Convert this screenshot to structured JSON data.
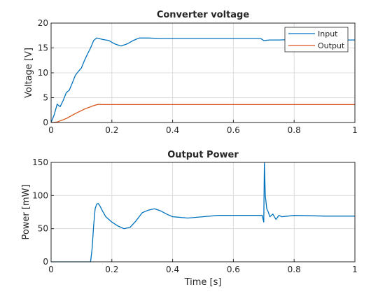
{
  "chart_data": [
    {
      "type": "line",
      "title": "Converter voltage",
      "xlabel": "",
      "ylabel": "Voltage [V]",
      "xlim": [
        0,
        1
      ],
      "ylim": [
        0,
        20
      ],
      "xticks": [
        "0",
        "0.2",
        "0.4",
        "0.6",
        "0.8",
        "1"
      ],
      "xtick_values": [
        0,
        0.2,
        0.4,
        0.6,
        0.8,
        1
      ],
      "yticks": [
        "0",
        "5",
        "10",
        "15",
        "20"
      ],
      "ytick_values": [
        0,
        5,
        10,
        15,
        20
      ],
      "grid": true,
      "legend_position": "top-right",
      "series": [
        {
          "name": "Input",
          "color": "#0072BD",
          "x": [
            0,
            0.01,
            0.02,
            0.025,
            0.03,
            0.04,
            0.05,
            0.06,
            0.07,
            0.08,
            0.09,
            0.1,
            0.11,
            0.12,
            0.13,
            0.14,
            0.15,
            0.17,
            0.19,
            0.21,
            0.23,
            0.25,
            0.27,
            0.29,
            0.32,
            0.36,
            0.4,
            0.5,
            0.6,
            0.69,
            0.7,
            0.72,
            0.75,
            0.8,
            0.9,
            1.0
          ],
          "y": [
            0,
            1.5,
            3.7,
            3.4,
            3.2,
            4.5,
            6.0,
            6.5,
            8.0,
            9.5,
            10.3,
            11.0,
            12.5,
            13.8,
            15.0,
            16.5,
            17.0,
            16.7,
            16.5,
            15.8,
            15.4,
            15.8,
            16.5,
            17.0,
            17.0,
            16.9,
            16.9,
            16.9,
            16.9,
            16.9,
            16.5,
            16.6,
            16.6,
            16.7,
            16.6,
            16.6
          ]
        },
        {
          "name": "Output",
          "color": "#D95319",
          "x": [
            0,
            0.02,
            0.05,
            0.08,
            0.11,
            0.14,
            0.155,
            0.17,
            0.3,
            0.5,
            0.7,
            1.0
          ],
          "y": [
            0,
            0.1,
            0.8,
            1.8,
            2.7,
            3.4,
            3.65,
            3.6,
            3.6,
            3.6,
            3.6,
            3.6
          ]
        }
      ]
    },
    {
      "type": "line",
      "title": "Output Power",
      "xlabel": "Time [s]",
      "ylabel": "Power [mW]",
      "xlim": [
        0,
        1
      ],
      "ylim": [
        0,
        150
      ],
      "xticks": [
        "0",
        "0.2",
        "0.4",
        "0.6",
        "0.8",
        "1"
      ],
      "xtick_values": [
        0,
        0.2,
        0.4,
        0.6,
        0.8,
        1
      ],
      "yticks": [
        "0",
        "50",
        "100",
        "150"
      ],
      "ytick_values": [
        0,
        50,
        100,
        150
      ],
      "grid": true,
      "series": [
        {
          "color": "#0072BD",
          "x": [
            0,
            0.13,
            0.135,
            0.14,
            0.145,
            0.15,
            0.155,
            0.16,
            0.17,
            0.18,
            0.2,
            0.22,
            0.24,
            0.26,
            0.28,
            0.3,
            0.32,
            0.34,
            0.36,
            0.38,
            0.4,
            0.45,
            0.5,
            0.55,
            0.6,
            0.65,
            0.695,
            0.7,
            0.702,
            0.705,
            0.71,
            0.715,
            0.72,
            0.73,
            0.74,
            0.75,
            0.76,
            0.78,
            0.8,
            0.9,
            1.0
          ],
          "y": [
            0,
            0,
            20,
            55,
            80,
            87,
            88,
            85,
            76,
            68,
            60,
            54,
            50,
            52,
            62,
            74,
            78,
            80,
            77,
            72,
            68,
            66,
            68,
            70,
            70,
            70,
            70,
            60,
            150,
            100,
            80,
            75,
            68,
            72,
            64,
            70,
            68,
            69,
            70,
            69,
            69
          ]
        }
      ]
    }
  ]
}
